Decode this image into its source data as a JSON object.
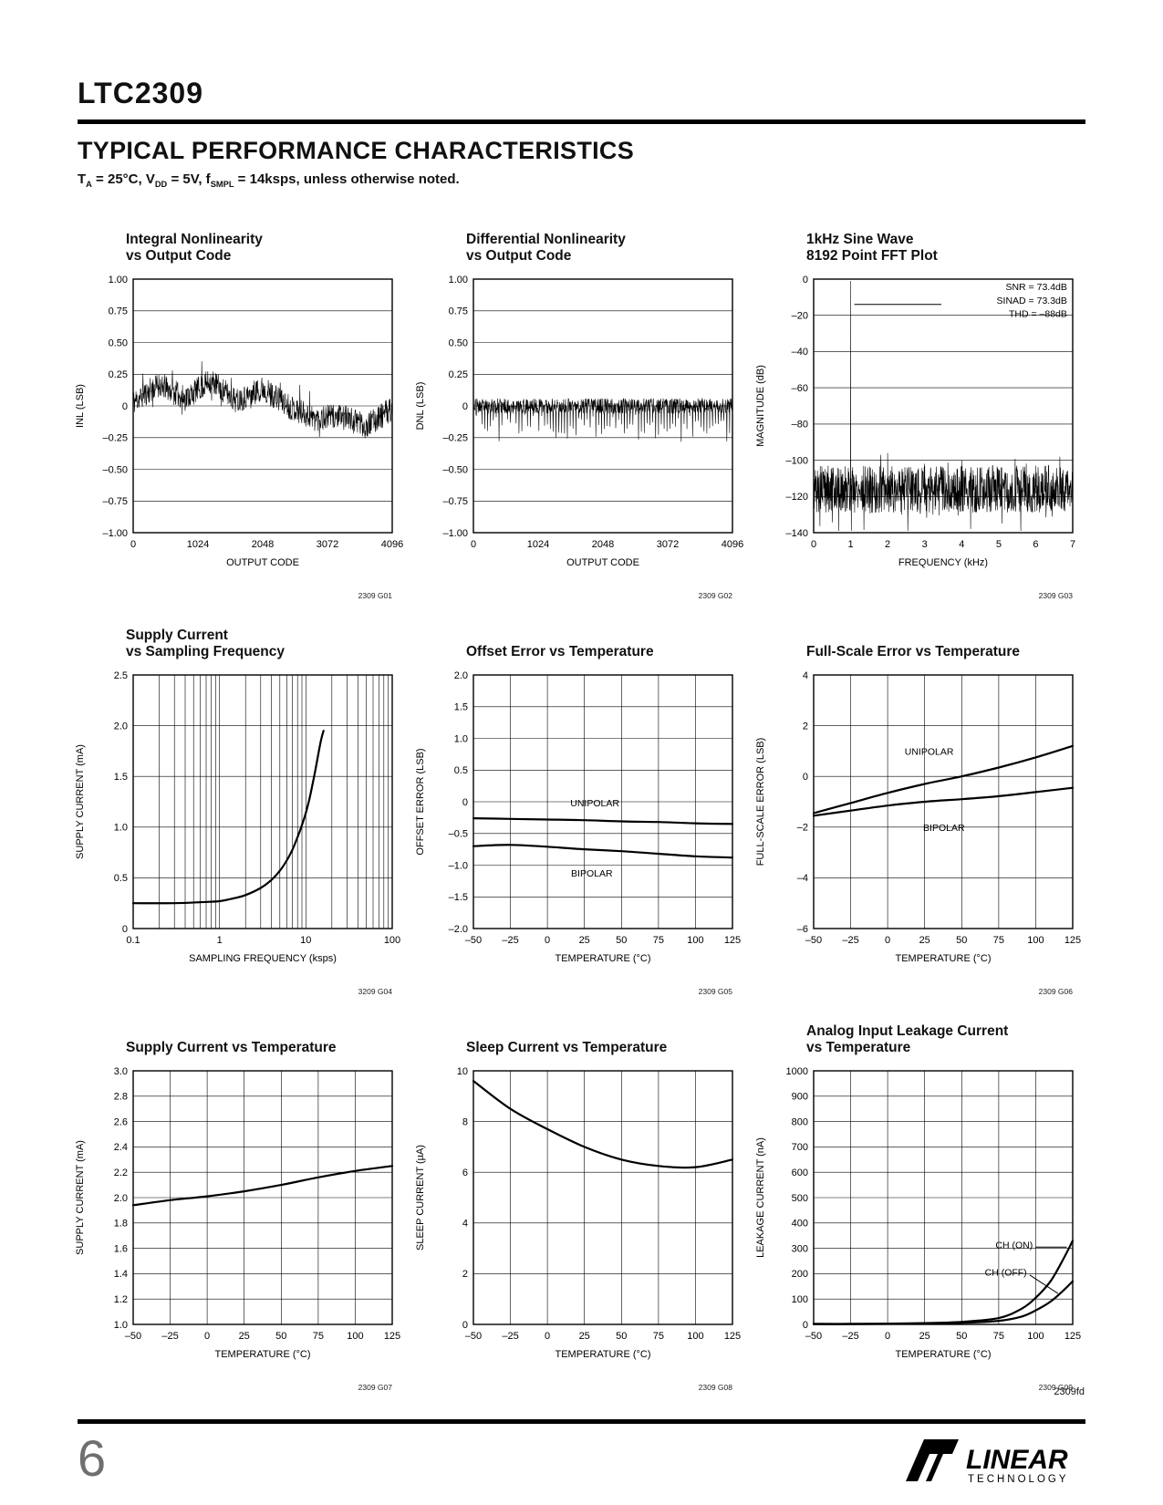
{
  "page": {
    "part_number": "LTC2309",
    "section_title": "TYPICAL PERFORMANCE CHARACTERISTICS",
    "conditions_parts": [
      {
        "text": "T"
      },
      {
        "text": "A",
        "sub": true
      },
      {
        "text": " = 25°C, V"
      },
      {
        "text": "DD",
        "sub": true
      },
      {
        "text": " = 5V, f"
      },
      {
        "text": "SMPL",
        "sub": true
      },
      {
        "text": " = 14ksps, unless otherwise noted."
      }
    ],
    "page_number": "6",
    "doc_code": "2309fd",
    "logo": {
      "brand": "LINEAR",
      "sub_brand": "TECHNOLOGY"
    }
  },
  "chart_data": [
    {
      "type": "line",
      "title_lines": [
        "Integral Nonlinearity",
        "vs Output Code"
      ],
      "xlabel": "OUTPUT CODE",
      "ylabel": "INL (LSB)",
      "xlim": [
        0,
        4096
      ],
      "ylim": [
        -1,
        1
      ],
      "xticks": [
        0,
        1024,
        2048,
        3072,
        4096
      ],
      "xtick_labels": [
        "0",
        "1024",
        "2048",
        "3072",
        "4096"
      ],
      "yticks": [
        1,
        0.75,
        0.5,
        0.25,
        0,
        -0.25,
        -0.5,
        -0.75,
        -1
      ],
      "ytick_labels": [
        "1.00",
        "0.75",
        "0.50",
        "0.25",
        "0",
        "–0.25",
        "–0.50",
        "–0.75",
        "–1.00"
      ],
      "grid": "h",
      "series": [
        {
          "name": "INL",
          "generator": {
            "kind": "jitter",
            "seed": 11,
            "n": 820,
            "amp": 0.1,
            "bias": [
              0.03,
              0.17,
              0.06,
              0.2,
              0.04,
              0.14,
              0.0,
              -0.1,
              -0.08,
              -0.16,
              -0.02
            ],
            "spike_every": 31,
            "spike_amp": 0.14
          }
        }
      ],
      "ref": "2309 G01"
    },
    {
      "type": "line",
      "title_lines": [
        "Differential Nonlinearity",
        "vs Output Code"
      ],
      "xlabel": "OUTPUT CODE",
      "ylabel": "DNL (LSB)",
      "xlim": [
        0,
        4096
      ],
      "ylim": [
        -1,
        1
      ],
      "xticks": [
        0,
        1024,
        2048,
        3072,
        4096
      ],
      "xtick_labels": [
        "0",
        "1024",
        "2048",
        "3072",
        "4096"
      ],
      "yticks": [
        1,
        0.75,
        0.5,
        0.25,
        0,
        -0.25,
        -0.5,
        -0.75,
        -1
      ],
      "ytick_labels": [
        "1.00",
        "0.75",
        "0.50",
        "0.25",
        "0",
        "–0.25",
        "–0.50",
        "–0.75",
        "–1.00"
      ],
      "grid": "h",
      "series": [
        {
          "name": "DNL",
          "generator": {
            "kind": "jitter",
            "seed": 23,
            "n": 820,
            "amp": 0.06,
            "bias": [
              0,
              0,
              0,
              0
            ],
            "spike_every": 9,
            "spike_amp": 0.17,
            "spike_sign": -1
          }
        }
      ],
      "ref": "2309 G02"
    },
    {
      "type": "line",
      "title_lines": [
        "1kHz Sine Wave",
        "8192 Point FFT Plot"
      ],
      "xlabel": "FREQUENCY (kHz)",
      "ylabel": "MAGNITUDE (dB)",
      "xlim": [
        0,
        7
      ],
      "ylim": [
        -140,
        0
      ],
      "xticks": [
        0,
        1,
        2,
        3,
        4,
        5,
        6,
        7
      ],
      "xtick_labels": [
        "0",
        "1",
        "2",
        "3",
        "4",
        "5",
        "6",
        "7"
      ],
      "yticks": [
        0,
        -20,
        -40,
        -60,
        -80,
        -100,
        -120,
        -140
      ],
      "ytick_labels": [
        "0",
        "–20",
        "–40",
        "–60",
        "–80",
        "–100",
        "–120",
        "–140"
      ],
      "grid": "h",
      "series": [
        {
          "name": "FFT",
          "generator": {
            "kind": "fft",
            "seed": 5,
            "n": 950,
            "floor": -116,
            "amp": 13,
            "deep_every": 23,
            "deep_amp": 16,
            "spikes": [
              [
                1,
                -1
              ],
              [
                2,
                -96
              ],
              [
                3,
                -102
              ],
              [
                4,
                -100
              ],
              [
                5,
                -105
              ],
              [
                6,
                -103
              ]
            ]
          }
        }
      ],
      "labels": [
        {
          "text": "SNR = 73.4dB",
          "x": 6.85,
          "y": -6,
          "anchor": "end"
        },
        {
          "text": "SINAD = 73.3dB",
          "x": 6.85,
          "y": -13.5,
          "anchor": "end"
        },
        {
          "text": "THD = –88dB",
          "x": 6.85,
          "y": -21,
          "anchor": "end"
        }
      ],
      "leader_lines": [
        [
          1.1,
          -14,
          3.45,
          -14
        ]
      ],
      "ref": "2309 G03"
    },
    {
      "type": "line",
      "title_lines": [
        "Supply Current",
        "vs Sampling Frequency"
      ],
      "xlabel": "SAMPLING FREQUENCY (ksps)",
      "ylabel": "SUPPLY CURRENT (mA)",
      "xscale": "log",
      "log_minor_x": true,
      "xlim": [
        0.1,
        100
      ],
      "ylim": [
        0,
        2.5
      ],
      "xticks": [
        0.1,
        1,
        10,
        100
      ],
      "xtick_labels": [
        "0.1",
        "1",
        "10",
        "100"
      ],
      "yticks": [
        0,
        0.5,
        1,
        1.5,
        2,
        2.5
      ],
      "ytick_labels": [
        "0",
        "0.5",
        "1.0",
        "1.5",
        "2.0",
        "2.5"
      ],
      "grid": "both",
      "series": [
        {
          "name": "Supply Current",
          "points": [
            [
              0.1,
              0.25
            ],
            [
              0.3,
              0.25
            ],
            [
              0.6,
              0.26
            ],
            [
              1,
              0.27
            ],
            [
              1.5,
              0.3
            ],
            [
              2,
              0.33
            ],
            [
              3,
              0.4
            ],
            [
              4,
              0.48
            ],
            [
              5,
              0.57
            ],
            [
              6,
              0.67
            ],
            [
              7,
              0.78
            ],
            [
              8,
              0.9
            ],
            [
              9,
              1.02
            ],
            [
              10,
              1.14
            ],
            [
              11,
              1.28
            ],
            [
              12,
              1.43
            ],
            [
              13,
              1.58
            ],
            [
              14,
              1.73
            ],
            [
              15,
              1.86
            ],
            [
              16,
              1.95
            ]
          ]
        }
      ],
      "ref": "3209 G04"
    },
    {
      "type": "line",
      "title_lines": [
        "Offset Error vs Temperature"
      ],
      "xlabel": "TEMPERATURE (°C)",
      "ylabel": "OFFSET ERROR (LSB)",
      "xlim": [
        -50,
        125
      ],
      "ylim": [
        -2,
        2
      ],
      "xticks": [
        -50,
        -25,
        0,
        25,
        50,
        75,
        100,
        125
      ],
      "xtick_labels": [
        "–50",
        "–25",
        "0",
        "25",
        "50",
        "75",
        "100",
        "125"
      ],
      "yticks": [
        2,
        1.5,
        1,
        0.5,
        0,
        -0.5,
        -1,
        -1.5,
        -2
      ],
      "ytick_labels": [
        "2.0",
        "1.5",
        "1.0",
        "0.5",
        "0",
        "–0.5",
        "–1.0",
        "–1.5",
        "–2.0"
      ],
      "grid": "both",
      "series": [
        {
          "name": "UNIPOLAR",
          "points": [
            [
              -50,
              -0.26
            ],
            [
              -25,
              -0.27
            ],
            [
              0,
              -0.28
            ],
            [
              25,
              -0.29
            ],
            [
              50,
              -0.31
            ],
            [
              75,
              -0.32
            ],
            [
              100,
              -0.34
            ],
            [
              125,
              -0.35
            ]
          ]
        },
        {
          "name": "BIPOLAR",
          "points": [
            [
              -50,
              -0.7
            ],
            [
              -25,
              -0.68
            ],
            [
              0,
              -0.71
            ],
            [
              25,
              -0.75
            ],
            [
              50,
              -0.78
            ],
            [
              75,
              -0.82
            ],
            [
              100,
              -0.86
            ],
            [
              125,
              -0.88
            ]
          ]
        }
      ],
      "labels": [
        {
          "text": "UNIPOLAR",
          "x": 32,
          "y": -0.07,
          "anchor": "middle"
        },
        {
          "text": "BIPOLAR",
          "x": 30,
          "y": -1.18,
          "anchor": "middle"
        }
      ],
      "ref": "2309 G05"
    },
    {
      "type": "line",
      "title_lines": [
        "Full-Scale Error vs Temperature"
      ],
      "xlabel": "TEMPERATURE (°C)",
      "ylabel": "FULL-SCALE ERROR (LSB)",
      "xlim": [
        -50,
        125
      ],
      "ylim": [
        -6,
        4
      ],
      "xticks": [
        -50,
        -25,
        0,
        25,
        50,
        75,
        100,
        125
      ],
      "xtick_labels": [
        "–50",
        "–25",
        "0",
        "25",
        "50",
        "75",
        "100",
        "125"
      ],
      "yticks": [
        4,
        2,
        0,
        -2,
        -4,
        -6
      ],
      "ytick_labels": [
        "4",
        "2",
        "0",
        "–2",
        "–4",
        "–6"
      ],
      "grid": "both",
      "series": [
        {
          "name": "UNIPOLAR",
          "points": [
            [
              -50,
              -1.45
            ],
            [
              -25,
              -1.05
            ],
            [
              0,
              -0.65
            ],
            [
              25,
              -0.3
            ],
            [
              50,
              0.0
            ],
            [
              75,
              0.35
            ],
            [
              100,
              0.75
            ],
            [
              125,
              1.2
            ]
          ]
        },
        {
          "name": "BIPOLAR",
          "points": [
            [
              -50,
              -1.55
            ],
            [
              -25,
              -1.35
            ],
            [
              0,
              -1.15
            ],
            [
              25,
              -1.0
            ],
            [
              50,
              -0.9
            ],
            [
              75,
              -0.78
            ],
            [
              100,
              -0.62
            ],
            [
              125,
              -0.45
            ]
          ]
        }
      ],
      "labels": [
        {
          "text": "UNIPOLAR",
          "x": 28,
          "y": 0.85,
          "anchor": "middle"
        },
        {
          "text": "BIPOLAR",
          "x": 38,
          "y": -2.15,
          "anchor": "middle"
        }
      ],
      "ref": "2309 G06"
    },
    {
      "type": "line",
      "title_lines": [
        "Supply Current vs Temperature"
      ],
      "xlabel": "TEMPERATURE (°C)",
      "ylabel": "SUPPLY CURRENT (mA)",
      "xlim": [
        -50,
        125
      ],
      "ylim": [
        1,
        3
      ],
      "xticks": [
        -50,
        -25,
        0,
        25,
        50,
        75,
        100,
        125
      ],
      "xtick_labels": [
        "–50",
        "–25",
        "0",
        "25",
        "50",
        "75",
        "100",
        "125"
      ],
      "yticks": [
        3,
        2.8,
        2.6,
        2.4,
        2.2,
        2,
        1.8,
        1.6,
        1.4,
        1.2,
        1
      ],
      "ytick_labels": [
        "3.0",
        "2.8",
        "2.6",
        "2.4",
        "2.2",
        "2.0",
        "1.8",
        "1.6",
        "1.4",
        "1.2",
        "1.0"
      ],
      "grid": "both",
      "series": [
        {
          "name": "Supply Current",
          "points": [
            [
              -50,
              1.94
            ],
            [
              -25,
              1.98
            ],
            [
              0,
              2.01
            ],
            [
              25,
              2.05
            ],
            [
              50,
              2.1
            ],
            [
              75,
              2.16
            ],
            [
              100,
              2.21
            ],
            [
              125,
              2.25
            ]
          ]
        }
      ],
      "ref": "2309 G07"
    },
    {
      "type": "line",
      "title_lines": [
        "Sleep Current vs Temperature"
      ],
      "xlabel": "TEMPERATURE (°C)",
      "ylabel": "SLEEP CURRENT (µA)",
      "xlim": [
        -50,
        125
      ],
      "ylim": [
        0,
        10
      ],
      "xticks": [
        -50,
        -25,
        0,
        25,
        50,
        75,
        100,
        125
      ],
      "xtick_labels": [
        "–50",
        "–25",
        "0",
        "25",
        "50",
        "75",
        "100",
        "125"
      ],
      "yticks": [
        10,
        8,
        6,
        4,
        2,
        0
      ],
      "ytick_labels": [
        "10",
        "8",
        "6",
        "4",
        "2",
        "0"
      ],
      "grid": "both",
      "series": [
        {
          "name": "Sleep Current",
          "points": [
            [
              -50,
              9.6
            ],
            [
              -25,
              8.5
            ],
            [
              0,
              7.7
            ],
            [
              25,
              7.0
            ],
            [
              50,
              6.5
            ],
            [
              75,
              6.25
            ],
            [
              100,
              6.2
            ],
            [
              125,
              6.5
            ]
          ]
        }
      ],
      "ref": "2309 G08"
    },
    {
      "type": "line",
      "title_lines": [
        "Analog Input Leakage Current",
        "vs Temperature"
      ],
      "xlabel": "TEMPERATURE (°C)",
      "ylabel": "LEAKAGE CURRENT (nA)",
      "xlim": [
        -50,
        125
      ],
      "ylim": [
        0,
        1000
      ],
      "xticks": [
        -50,
        -25,
        0,
        25,
        50,
        75,
        100,
        125
      ],
      "xtick_labels": [
        "–50",
        "–25",
        "0",
        "25",
        "50",
        "75",
        "100",
        "125"
      ],
      "yticks": [
        1000,
        900,
        800,
        700,
        600,
        500,
        400,
        300,
        200,
        100,
        0
      ],
      "ytick_labels": [
        "1000",
        "900",
        "800",
        "700",
        "600",
        "500",
        "400",
        "300",
        "200",
        "100",
        "0"
      ],
      "grid": "both",
      "series": [
        {
          "name": "CH (ON)",
          "points": [
            [
              -50,
              2
            ],
            [
              -25,
              2
            ],
            [
              0,
              3
            ],
            [
              25,
              5
            ],
            [
              50,
              10
            ],
            [
              75,
              25
            ],
            [
              90,
              60
            ],
            [
              100,
              105
            ],
            [
              110,
              170
            ],
            [
              118,
              250
            ],
            [
              125,
              330
            ]
          ]
        },
        {
          "name": "CH (OFF)",
          "points": [
            [
              -50,
              1
            ],
            [
              -25,
              1
            ],
            [
              0,
              2
            ],
            [
              25,
              3
            ],
            [
              50,
              6
            ],
            [
              75,
              14
            ],
            [
              90,
              30
            ],
            [
              100,
              55
            ],
            [
              110,
              90
            ],
            [
              118,
              130
            ],
            [
              125,
              170
            ]
          ]
        }
      ],
      "labels": [
        {
          "text": "CH (ON)",
          "x": 98,
          "y": 300,
          "anchor": "end"
        },
        {
          "text": "CH (OFF)",
          "x": 94,
          "y": 192,
          "anchor": "end"
        }
      ],
      "leader_lines": [
        [
          100,
          305,
          121,
          305
        ],
        [
          96,
          195,
          115,
          122
        ]
      ],
      "ref": "2309 G09"
    }
  ]
}
